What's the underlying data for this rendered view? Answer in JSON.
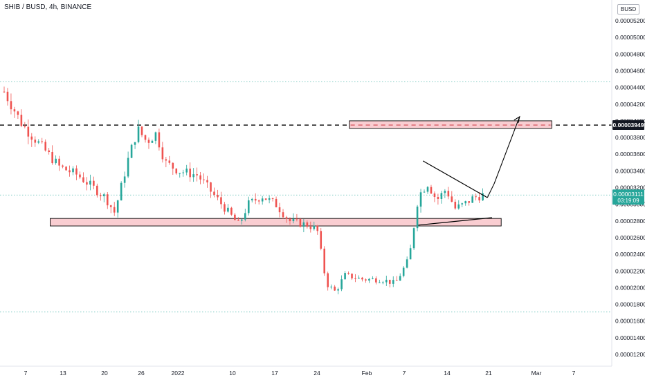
{
  "header": {
    "symbol_title": "SHIB / BUSD, 4h, BINANCE",
    "currency": "BUSD"
  },
  "price_labels": {
    "level": "0.00003949",
    "current": "0.00003111",
    "countdown": "03:19:09"
  },
  "colors": {
    "up": "#26a69a",
    "down": "#ef5350",
    "zone_fill": "#f8c8cc",
    "level_badge": "#131722",
    "current_badge": "#26a69a",
    "dotted": "#26a69a"
  },
  "chart_data": {
    "type": "candlestick",
    "title": "SHIB / BUSD, 4h, BINANCE",
    "y_tick_labels": [
      "0.00001200",
      "0.00001400",
      "0.00001600",
      "0.00001800",
      "0.00002000",
      "0.00002200",
      "0.00002400",
      "0.00002600",
      "0.00002800",
      "0.00003000",
      "0.00003200",
      "0.00003400",
      "0.00003600",
      "0.00003800",
      "0.00004000",
      "0.00004200",
      "0.00004400",
      "0.00004600",
      "0.00004800",
      "0.00005000",
      "0.00005200"
    ],
    "x_tick_labels": [
      "7",
      "13",
      "20",
      "26",
      "2022",
      "10",
      "17",
      "24",
      "Feb",
      "7",
      "14",
      "21",
      "Mar",
      "7"
    ],
    "ylim": [
      1.1e-05,
      5.25e-05
    ],
    "price_path": [
      {
        "x": 0,
        "y": 4.35e-05
      },
      {
        "x": 4,
        "y": 3.95e-05
      },
      {
        "x": 8,
        "y": 3.7e-05
      },
      {
        "x": 12,
        "y": 3.45e-05
      },
      {
        "x": 16,
        "y": 3.35e-05
      },
      {
        "x": 22,
        "y": 3.08e-05
      },
      {
        "x": 24,
        "y": 2.9e-05
      },
      {
        "x": 27,
        "y": 3.55e-05
      },
      {
        "x": 29,
        "y": 3.9e-05
      },
      {
        "x": 31,
        "y": 3.75e-05
      },
      {
        "x": 33,
        "y": 3.85e-05
      },
      {
        "x": 35,
        "y": 3.5e-05
      },
      {
        "x": 38,
        "y": 3.4e-05
      },
      {
        "x": 42,
        "y": 3.35e-05
      },
      {
        "x": 45,
        "y": 3.15e-05
      },
      {
        "x": 48,
        "y": 2.95e-05
      },
      {
        "x": 51,
        "y": 2.75e-05
      },
      {
        "x": 53,
        "y": 3e-05
      },
      {
        "x": 56,
        "y": 3.1e-05
      },
      {
        "x": 59,
        "y": 3e-05
      },
      {
        "x": 62,
        "y": 2.8e-05
      },
      {
        "x": 66,
        "y": 2.75e-05
      },
      {
        "x": 68,
        "y": 2.7e-05
      },
      {
        "x": 70,
        "y": 2.05e-05
      },
      {
        "x": 72,
        "y": 1.95e-05
      },
      {
        "x": 74,
        "y": 2.15e-05
      },
      {
        "x": 78,
        "y": 2.1e-05
      },
      {
        "x": 82,
        "y": 2.1e-05
      },
      {
        "x": 85,
        "y": 2.05e-05
      },
      {
        "x": 88,
        "y": 2.35e-05
      },
      {
        "x": 90,
        "y": 3.1e-05
      },
      {
        "x": 92,
        "y": 3.25e-05
      },
      {
        "x": 94,
        "y": 3.05e-05
      },
      {
        "x": 96,
        "y": 3.18e-05
      },
      {
        "x": 98,
        "y": 2.95e-05
      },
      {
        "x": 100,
        "y": 3e-05
      },
      {
        "x": 102,
        "y": 3.08e-05
      },
      {
        "x": 104,
        "y": 3.11e-05
      }
    ],
    "zones": [
      {
        "name": "support-zone",
        "x": [
          10,
          108
        ],
        "y": [
          2.74e-05,
          2.83e-05
        ]
      },
      {
        "name": "target-zone",
        "x": [
          75,
          119
        ],
        "y": [
          3.91e-05,
          4e-05
        ]
      }
    ],
    "levels": [
      {
        "name": "resistance-level",
        "y": 3.949e-05,
        "style": "dashed"
      },
      {
        "name": "upper-range-line",
        "y": 4.47e-05,
        "style": "dotted"
      },
      {
        "name": "current-price-line",
        "y": 3.111e-05,
        "style": "dotted"
      },
      {
        "name": "lower-range-line",
        "y": 1.71e-05,
        "style": "dotted"
      }
    ],
    "trendlines": [
      {
        "name": "triangle-upper-line",
        "x": [
          91,
          105
        ],
        "y": [
          3.52e-05,
          3.08e-05
        ]
      },
      {
        "name": "triangle-lower-line",
        "x": [
          90,
          106
        ],
        "y": [
          2.75e-05,
          2.84e-05
        ]
      }
    ],
    "projection_arrow": {
      "points": [
        [
          105,
          3.08e-05
        ],
        [
          106.5,
          3.25e-05
        ],
        [
          112,
          4.05e-05
        ]
      ]
    }
  }
}
